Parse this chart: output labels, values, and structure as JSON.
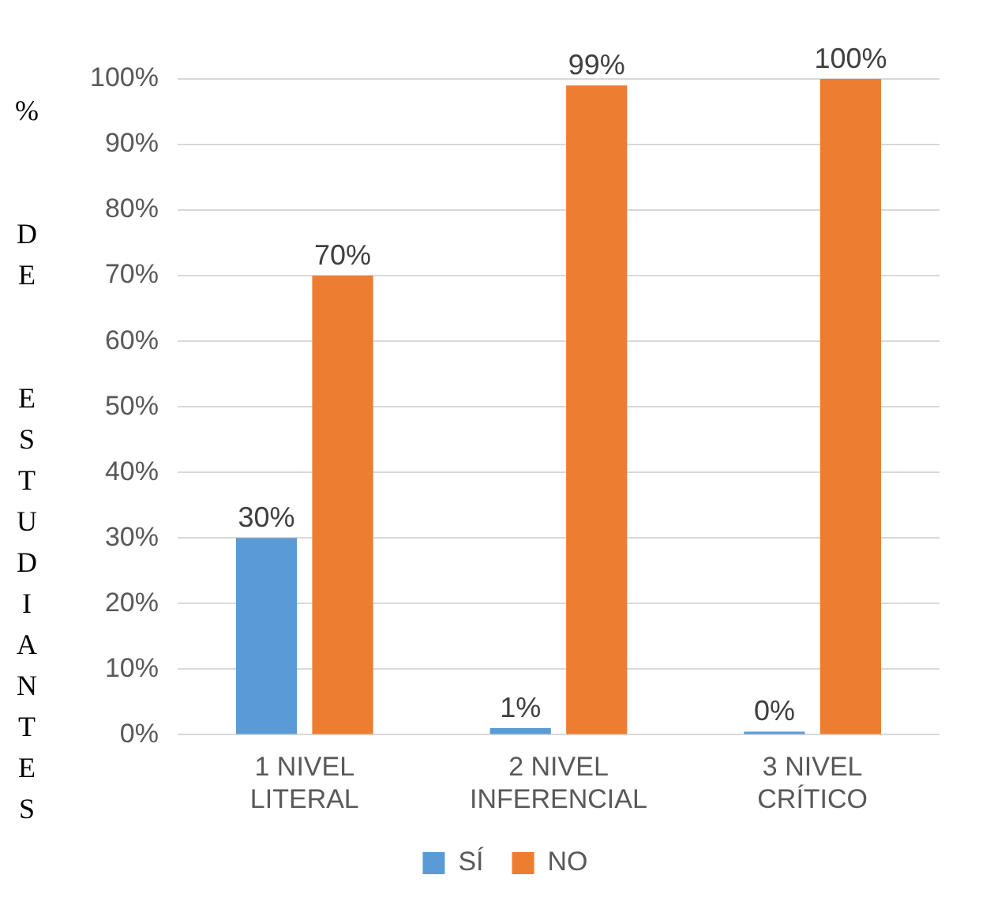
{
  "chart_data": {
    "type": "bar",
    "ylabel": "% DE ESTUDIANTES",
    "categories": [
      "1 NIVEL LITERAL",
      "2 NIVEL INFERENCIAL",
      "3 NIVEL CRÍTICO"
    ],
    "series": [
      {
        "name": "SÍ",
        "color": "#5b9bd5",
        "values": [
          30,
          1,
          0
        ],
        "value_labels": [
          "30%",
          "1%",
          "0%"
        ]
      },
      {
        "name": "NO",
        "color": "#ed7d31",
        "values": [
          70,
          99,
          100
        ],
        "value_labels": [
          "70%",
          "99%",
          "100%"
        ]
      }
    ],
    "ylim": [
      0,
      100
    ],
    "yticks": [
      {
        "value": 0,
        "label": "0%"
      },
      {
        "value": 10,
        "label": "10%"
      },
      {
        "value": 20,
        "label": "20%"
      },
      {
        "value": 30,
        "label": "30%"
      },
      {
        "value": 40,
        "label": "40%"
      },
      {
        "value": 50,
        "label": "50%"
      },
      {
        "value": 60,
        "label": "60%"
      },
      {
        "value": 70,
        "label": "70%"
      },
      {
        "value": 80,
        "label": "80%"
      },
      {
        "value": 90,
        "label": "90%"
      },
      {
        "value": 100,
        "label": "100%"
      }
    ],
    "grid": "y",
    "legend": "bottom"
  }
}
